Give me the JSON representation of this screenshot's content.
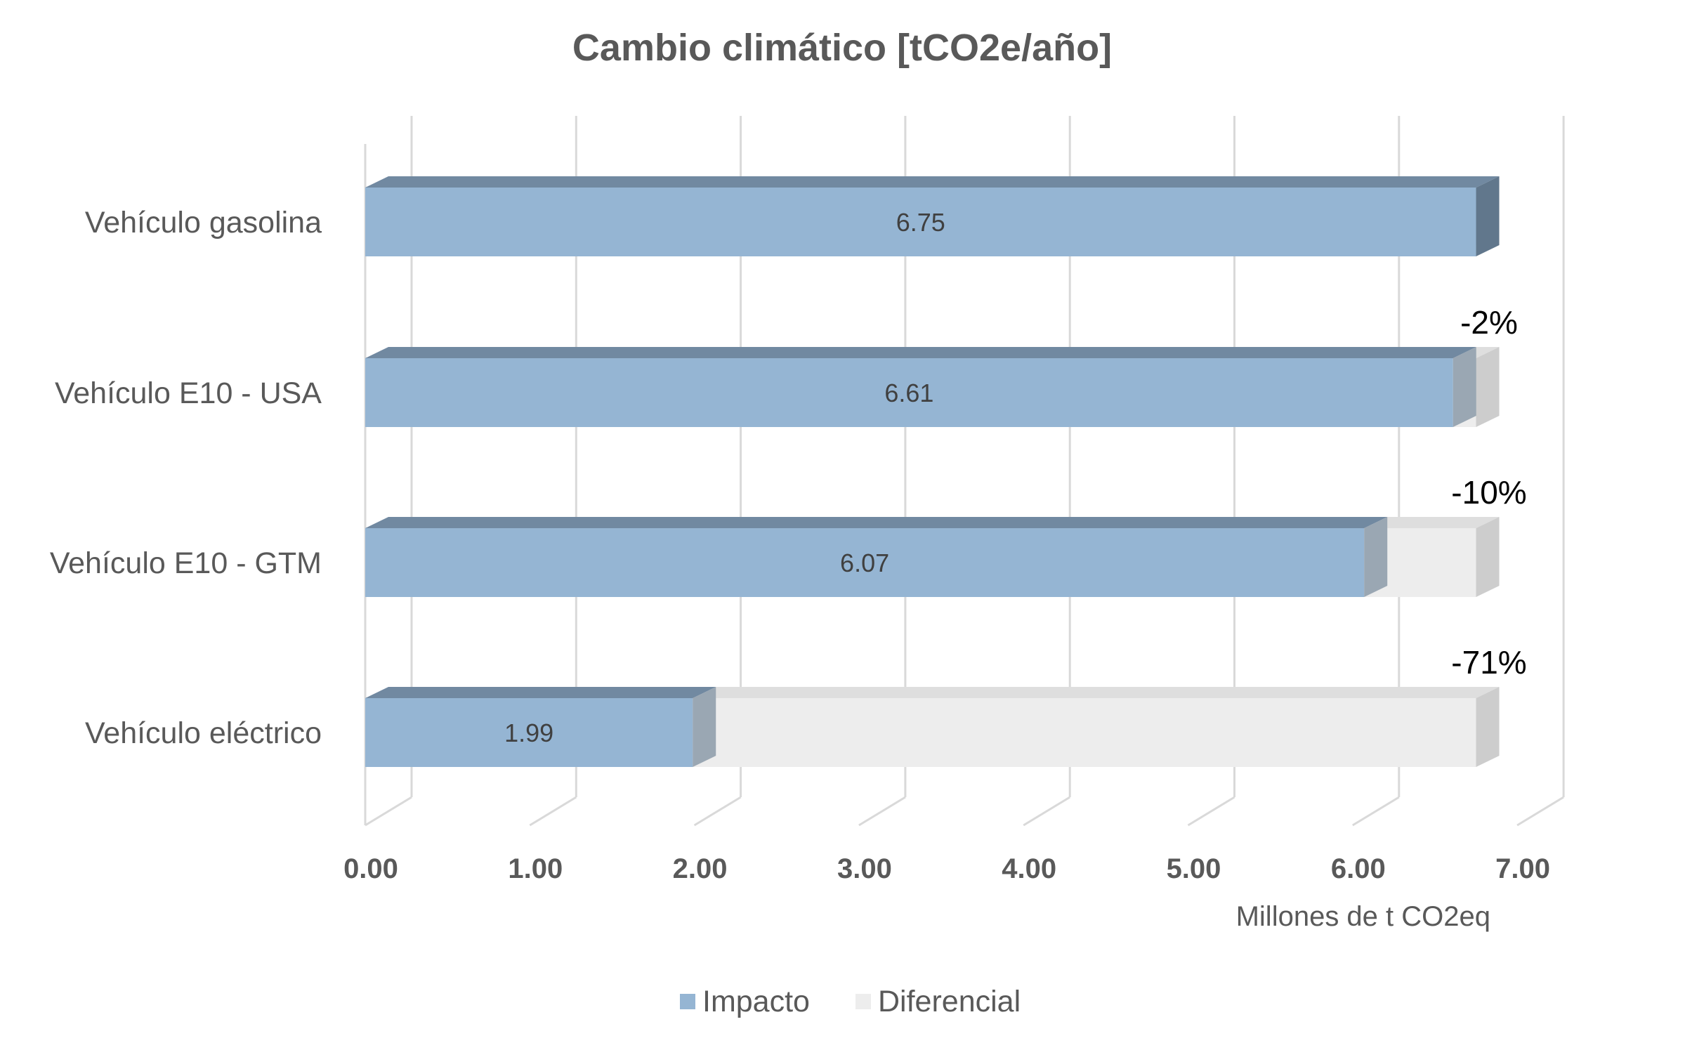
{
  "chart_data": {
    "type": "bar",
    "orientation": "horizontal",
    "stacked": true,
    "three_d": true,
    "title": "Cambio climático [tCO2e/año]",
    "xlabel": "Millones de t CO2eq",
    "categories": [
      "Vehículo gasolina",
      "Vehículo E10 - USA",
      "Vehículo E10 - GTM",
      "Vehículo eléctrico"
    ],
    "series": [
      {
        "name": "Impacto",
        "values": [
          6.75,
          6.61,
          6.07,
          1.99
        ],
        "color": "#95b5d3"
      },
      {
        "name": "Diferencial",
        "values": [
          0,
          0.14,
          0.68,
          4.76
        ],
        "color": "#ededed"
      }
    ],
    "data_labels": [
      "6.75",
      "6.61",
      "6.07",
      "1.99"
    ],
    "percent_labels": [
      "",
      "-2%",
      "-10%",
      "-71%"
    ],
    "x_ticks": [
      "0.00",
      "1.00",
      "2.00",
      "3.00",
      "4.00",
      "5.00",
      "6.00",
      "7.00"
    ],
    "xlim": [
      0,
      7
    ],
    "grid": true,
    "legend_position": "bottom"
  }
}
